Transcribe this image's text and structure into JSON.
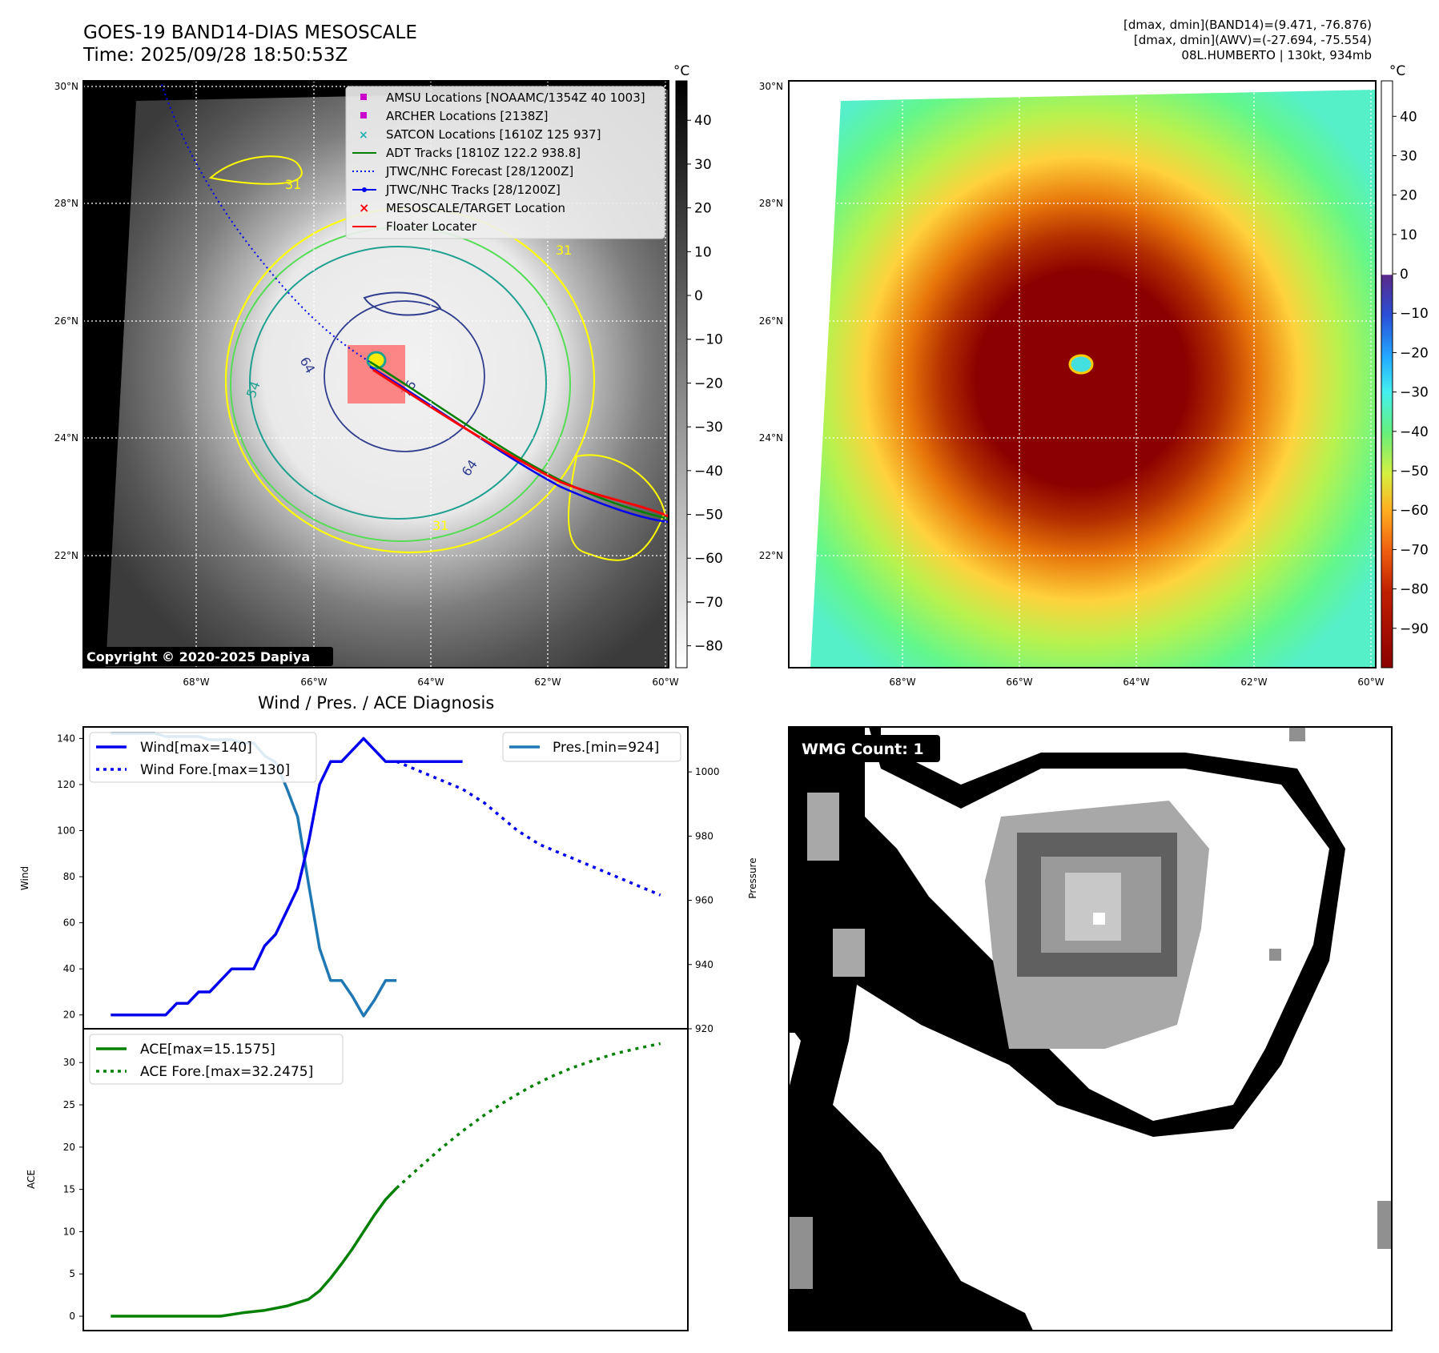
{
  "header": {
    "title_line1": "GOES-19 BAND14-DIAS MESOSCALE",
    "title_line2": "Time: 2025/09/28 18:50:53Z",
    "info_line1": "[dmax, dmin](BAND14)=(9.471, -76.876)",
    "info_line2": "[dmax, dmin](AWV)=(-27.694, -75.554)",
    "info_line3": "08L.HUMBERTO | 130kt, 934mb"
  },
  "colors": {
    "wind": "#0000ee",
    "pressure": "#1f77b4",
    "ace": "#008000",
    "floater": "#ff0000",
    "contour_yellow": "#ffff00",
    "contour_green": "#55dd55",
    "contour_teal": "#20a090",
    "contour_navy": "#303d8f"
  },
  "map_ir": {
    "lat_labels": [
      "30°N",
      "28°N",
      "26°N",
      "24°N",
      "22°N"
    ],
    "lon_labels": [
      "68°W",
      "66°W",
      "64°W",
      "62°W",
      "60°W"
    ],
    "lat_range": [
      20,
      30
    ],
    "lon_range": [
      -70,
      -60
    ],
    "storm_center": {
      "lat": 25.3,
      "lon": -65.0
    },
    "legend": [
      {
        "icon": "square-magenta",
        "label": "AMSU Locations [NOAAMC/1354Z 40 1003]"
      },
      {
        "icon": "square-magenta",
        "label": "ARCHER Locations [2138Z]"
      },
      {
        "icon": "x-cyan",
        "label": "SATCON Locations [1610Z 125 937]"
      },
      {
        "icon": "line-green",
        "label": "ADT Tracks [1810Z 122.2 938.8]"
      },
      {
        "icon": "dotted-blue",
        "label": "JTWC/NHC Forecast [28/1200Z]"
      },
      {
        "icon": "line-dot-blue",
        "label": "JTWC/NHC Tracks [28/1200Z]"
      },
      {
        "icon": "x-red",
        "label": "MESOSCALE/TARGET Location"
      },
      {
        "icon": "line-red",
        "label": "Floater Locater"
      }
    ],
    "contour_labels": [
      "31",
      "31",
      "31",
      "54",
      "64",
      "64",
      "76"
    ],
    "copyright": "Copyright © 2020-2025 Dapiya",
    "colorbar_unit": "°C",
    "colorbar_ticks": [
      40,
      30,
      20,
      10,
      0,
      -10,
      -20,
      -30,
      -40,
      -50,
      -60,
      -70,
      -80
    ],
    "colorbar_tick_labels": [
      "40",
      "30",
      "20",
      "10",
      "0",
      "−10",
      "−20",
      "−30",
      "−40",
      "−50",
      "−60",
      "−70",
      "−80"
    ],
    "colorbar_range": [
      -85,
      49
    ]
  },
  "map_awv": {
    "lat_labels": [
      "30°N",
      "28°N",
      "26°N",
      "24°N",
      "22°N"
    ],
    "lon_labels": [
      "68°W",
      "66°W",
      "64°W",
      "62°W",
      "60°W"
    ],
    "colorbar_unit": "°C",
    "colorbar_ticks": [
      40,
      30,
      20,
      10,
      0,
      -10,
      -20,
      -30,
      -40,
      -50,
      -60,
      -70,
      -80,
      -90
    ],
    "colorbar_tick_labels": [
      "40",
      "30",
      "20",
      "10",
      "0",
      "−10",
      "−20",
      "−30",
      "−40",
      "−50",
      "−60",
      "−70",
      "−80",
      "−90"
    ],
    "colorbar_range": [
      -100,
      49
    ]
  },
  "diagnosis": {
    "title": "Wind / Pres. / ACE Diagnosis",
    "wmg_label": "WMG Count: 1"
  },
  "chart_data": [
    {
      "type": "line",
      "title": "Wind / Pres. / ACE Diagnosis",
      "ylabel": "Wind",
      "y2label": "Pressure",
      "ylim": [
        14,
        145
      ],
      "y2lim": [
        920,
        1014
      ],
      "yticks": [
        20,
        40,
        60,
        80,
        100,
        120,
        140
      ],
      "y2ticks": [
        920,
        940,
        960,
        980,
        1000
      ],
      "x": [
        0,
        1,
        2,
        3,
        4,
        5,
        6,
        7,
        8,
        9,
        10,
        11,
        12,
        13,
        14,
        15,
        16,
        17,
        18,
        19,
        20,
        21,
        22,
        23,
        24,
        25,
        26,
        27,
        28,
        29,
        30,
        31,
        32,
        33,
        34,
        35,
        36,
        37,
        38,
        39,
        40,
        41,
        42,
        43,
        44,
        45,
        46,
        47,
        48,
        49,
        50
      ],
      "xlim": [
        -2.5,
        52.5
      ],
      "series": [
        {
          "name": "Wind[max=140]",
          "style": "solid",
          "axis": "left",
          "x": [
            0,
            1,
            2,
            3,
            4,
            5,
            6,
            7,
            8,
            9,
            10,
            11,
            12,
            13,
            14,
            15,
            16,
            17,
            18,
            19,
            20,
            21,
            22,
            23,
            24,
            25,
            26,
            27,
            28,
            29,
            30,
            31,
            32
          ],
          "values": [
            20,
            20,
            20,
            20,
            20,
            20,
            25,
            25,
            30,
            30,
            35,
            40,
            40,
            40,
            50,
            55,
            65,
            75,
            95,
            120,
            130,
            130,
            135,
            140,
            135,
            130,
            130,
            130,
            130,
            130,
            130,
            130,
            130
          ]
        },
        {
          "name": "Wind Fore.[max=130]",
          "style": "dotted",
          "axis": "left",
          "x": [
            26,
            27,
            28,
            29,
            30,
            31,
            32,
            33,
            34,
            35,
            36,
            37,
            38,
            39,
            40,
            41,
            42,
            43,
            44,
            45,
            46,
            47,
            48,
            49,
            50
          ],
          "values": [
            130,
            128,
            126,
            124,
            122,
            120,
            118,
            115,
            112,
            108,
            104,
            100,
            97,
            94,
            92,
            90,
            88,
            86,
            84,
            82,
            80,
            78,
            76,
            74,
            72
          ]
        },
        {
          "name": "Pres.[min=924]",
          "style": "solid",
          "axis": "right",
          "x": [
            0,
            1,
            2,
            3,
            4,
            5,
            6,
            7,
            8,
            9,
            10,
            11,
            12,
            13,
            14,
            15,
            16,
            17,
            18,
            19,
            20,
            21,
            22,
            23,
            24,
            25,
            26
          ],
          "values": [
            1012,
            1012,
            1012,
            1012,
            1012,
            1011,
            1011,
            1011,
            1011,
            1010,
            1010,
            1010,
            1009,
            1009,
            1005,
            1003,
            995,
            986,
            965,
            945,
            935,
            935,
            930,
            924,
            929,
            935,
            935
          ]
        }
      ]
    },
    {
      "type": "line",
      "ylabel": "ACE",
      "ylim": [
        -1.7,
        34
      ],
      "yticks": [
        0,
        5,
        10,
        15,
        20,
        25,
        30
      ],
      "x": [
        0,
        1,
        2,
        3,
        4,
        5,
        6,
        7,
        8,
        9,
        10,
        11,
        12,
        13,
        14,
        15,
        16,
        17,
        18,
        19,
        20,
        21,
        22,
        23,
        24,
        25,
        26,
        27,
        28,
        29,
        30,
        31,
        32,
        33,
        34,
        35,
        36,
        37,
        38,
        39,
        40,
        41,
        42,
        43,
        44,
        45,
        46,
        47,
        48,
        49,
        50
      ],
      "xlim": [
        -2.5,
        52.5
      ],
      "series": [
        {
          "name": "ACE[max=15.1575]",
          "style": "solid",
          "x": [
            0,
            2,
            4,
            6,
            8,
            10,
            12,
            14,
            16,
            18,
            19,
            20,
            21,
            22,
            23,
            24,
            25,
            26
          ],
          "values": [
            0,
            0,
            0,
            0,
            0,
            0,
            0.4,
            0.7,
            1.2,
            2,
            3,
            4.5,
            6.2,
            8,
            10,
            12,
            13.8,
            15.1575
          ]
        },
        {
          "name": "ACE Fore.[max=32.2475]",
          "style": "dotted",
          "x": [
            26,
            28,
            30,
            32,
            34,
            36,
            38,
            40,
            42,
            44,
            46,
            48,
            50
          ],
          "values": [
            15.1575,
            17.5,
            19.8,
            21.9,
            23.8,
            25.5,
            27,
            28.3,
            29.4,
            30.3,
            31.1,
            31.7,
            32.2475
          ]
        }
      ]
    }
  ]
}
